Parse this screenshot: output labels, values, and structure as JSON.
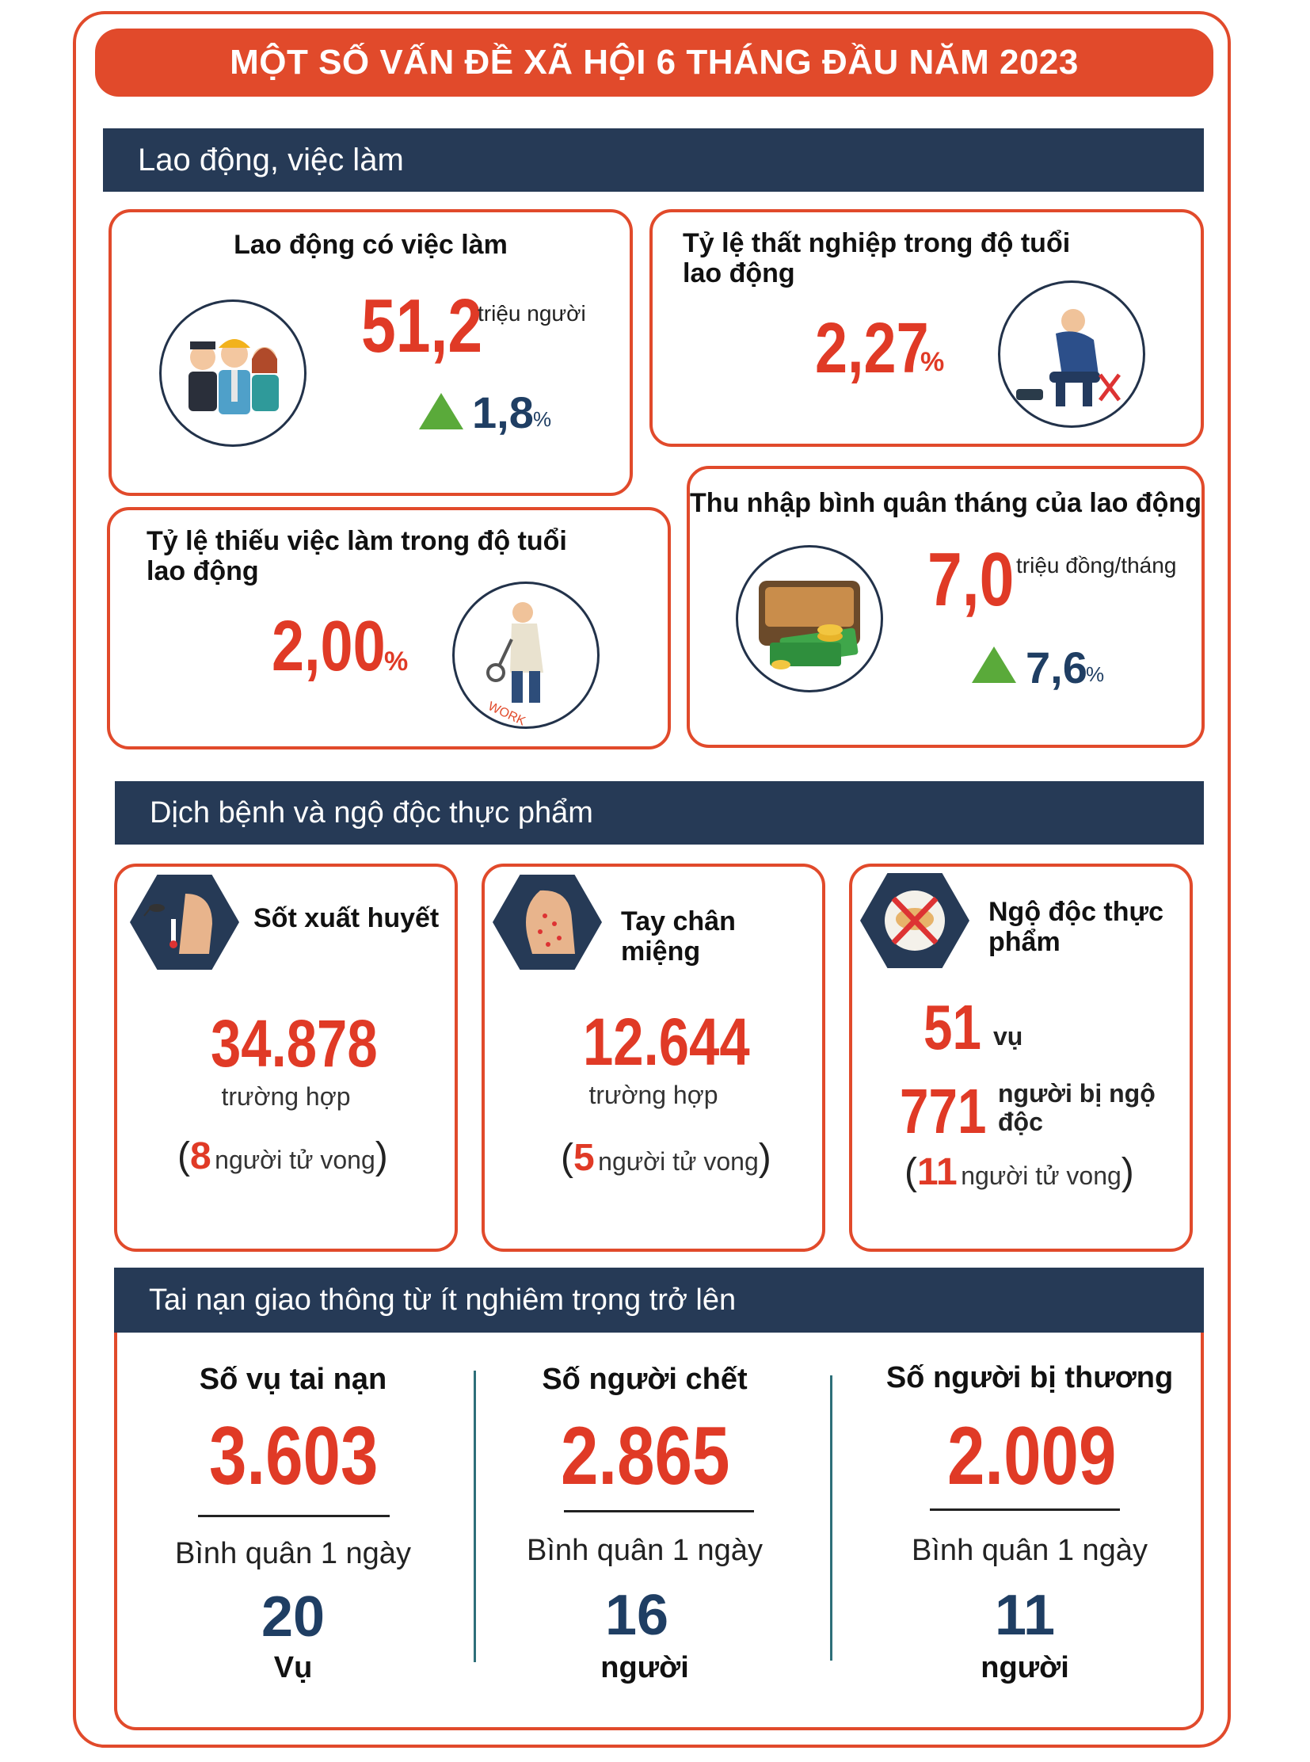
{
  "title": "MỘT SỐ VẤN ĐỀ XÃ HỘI 6 THÁNG ĐẦU NĂM 2023",
  "section1": {
    "header": "Lao động, việc làm",
    "employed": {
      "label": "Lao động có việc làm",
      "value": "51,2",
      "unit": "triệu người",
      "change": "1,8",
      "change_unit": "%"
    },
    "unemployment": {
      "label": "Tỷ lệ thất nghiệp trong độ tuổi lao động",
      "value": "2,27",
      "unit": "%"
    },
    "underemployment": {
      "label": "Tỷ lệ thiếu việc làm trong độ tuổi lao động",
      "value": "2,00",
      "unit": "%"
    },
    "income": {
      "label": "Thu nhập bình quân tháng của lao động",
      "value": "7,0",
      "unit": "triệu đồng/tháng",
      "change": "7,6",
      "change_unit": "%"
    }
  },
  "section2": {
    "header": "Dịch bệnh và ngộ độc thực phẩm",
    "dengue": {
      "label": "Sốt xuất huyết",
      "value": "34.878",
      "unit": "trường hợp",
      "deaths": "8",
      "deaths_text": "người tử vong",
      "open": "(",
      "close": ")"
    },
    "hfmd": {
      "label": "Tay chân miệng",
      "value": "12.644",
      "unit": "trường hợp",
      "deaths": "5",
      "deaths_text": "người tử vong",
      "open": "(",
      "close": ")"
    },
    "food": {
      "label": "Ngộ độc thực phẩm",
      "cases": "51",
      "cases_unit": "vụ",
      "people": "771",
      "people_unit": "người bị ngộ độc",
      "deaths": "11",
      "deaths_text": "người tử vong",
      "open": "(",
      "close": ")"
    }
  },
  "section3": {
    "header": "Tai nạn giao thông từ ít nghiêm trọng trở lên",
    "avg_label": "Bình quân 1 ngày",
    "accidents": {
      "label": "Số vụ tai nạn",
      "value": "3.603",
      "daily": "20",
      "daily_unit": "Vụ"
    },
    "deaths": {
      "label": "Số người chết",
      "value": "2.865",
      "daily": "16",
      "daily_unit": "người"
    },
    "injured": {
      "label": "Số người bị thương",
      "value": "2.009",
      "daily": "11",
      "daily_unit": "người"
    }
  },
  "colors": {
    "accent": "#e14a2b",
    "navy": "#263a56",
    "number_red": "#e03a26",
    "number_navy": "#1f3e63",
    "green": "#5aaa3a"
  },
  "icons": [
    "workers-icon",
    "depressed-man-icon",
    "job-search-icon",
    "wallet-money-icon",
    "mosquito-fever-icon",
    "rash-face-icon",
    "food-poisoning-icon",
    "up-arrow-icon"
  ]
}
